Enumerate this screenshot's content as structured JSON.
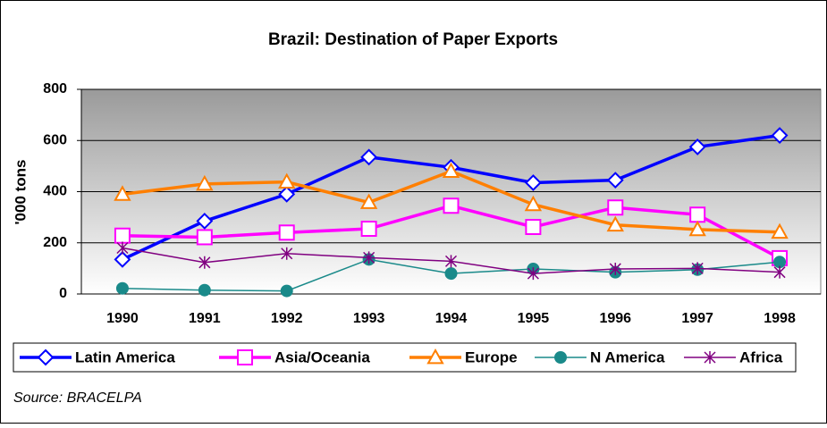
{
  "chart_data": {
    "type": "line",
    "title": "Brazil: Destination of Paper Exports",
    "y_label": "'000 tons",
    "categories": [
      "1990",
      "1991",
      "1992",
      "1993",
      "1994",
      "1995",
      "1996",
      "1997",
      "1998"
    ],
    "series": [
      {
        "name": "Latin America",
        "color": "#0000ff",
        "marker": "diamond",
        "values": [
          135,
          285,
          390,
          535,
          495,
          435,
          445,
          575,
          620
        ]
      },
      {
        "name": "Asia/Oceania",
        "color": "#ff00ff",
        "marker": "square",
        "values": [
          228,
          222,
          240,
          255,
          345,
          262,
          338,
          310,
          140
        ]
      },
      {
        "name": "Europe",
        "color": "#ff7f00",
        "marker": "triangle",
        "values": [
          390,
          430,
          438,
          358,
          480,
          350,
          270,
          252,
          242
        ]
      },
      {
        "name": "N America",
        "color": "#1a8a8a",
        "marker": "circle",
        "values": [
          22,
          15,
          12,
          135,
          80,
          98,
          85,
          95,
          125
        ]
      },
      {
        "name": "Africa",
        "color": "#800080",
        "marker": "star",
        "values": [
          180,
          123,
          158,
          142,
          128,
          80,
          98,
          100,
          85
        ]
      }
    ],
    "ylim": [
      0,
      800
    ],
    "yticks": [
      0,
      200,
      400,
      600,
      800
    ],
    "grid": true,
    "legend": "bottom",
    "source": "Source: BRACELPA"
  }
}
